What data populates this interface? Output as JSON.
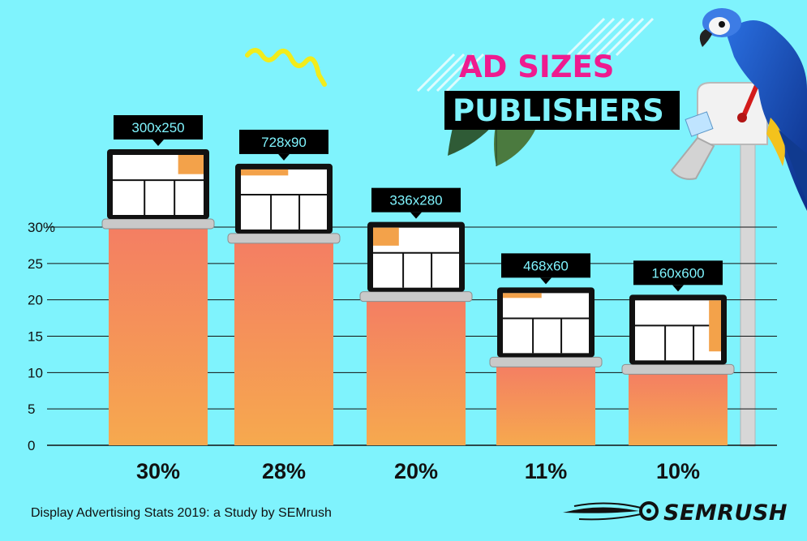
{
  "title": {
    "line1": "AD SIZES",
    "line2": "PUBLISHERS"
  },
  "chart_data": {
    "type": "bar",
    "title": "AD SIZES PUBLISHERS",
    "categories": [
      "300x250",
      "728x90",
      "336x280",
      "468x60",
      "160x600"
    ],
    "values": [
      30,
      28,
      20,
      11,
      10
    ],
    "value_labels": [
      "30%",
      "28%",
      "20%",
      "11%",
      "10%"
    ],
    "y_ticks": [
      "0",
      "5",
      "10",
      "15",
      "20",
      "25",
      "30%"
    ],
    "ylim": [
      0,
      30
    ],
    "grid": true,
    "legend": "none",
    "colors": {
      "bar_top": "#f47e63",
      "bar_bottom": "#f6a94e",
      "background": "#7ff3fd",
      "label_bg": "#000000",
      "title_pink": "#ee1b8f",
      "ad_highlight": "#f3a24a"
    }
  },
  "caption": "Display Advertising Stats 2019: a Study by SEMrush",
  "brand": "SEMRUSH",
  "icons": [
    "parrot-illustration",
    "mailbox-illustration",
    "leaves-illustration",
    "squiggle-decoration",
    "semrush-logo-icon"
  ]
}
